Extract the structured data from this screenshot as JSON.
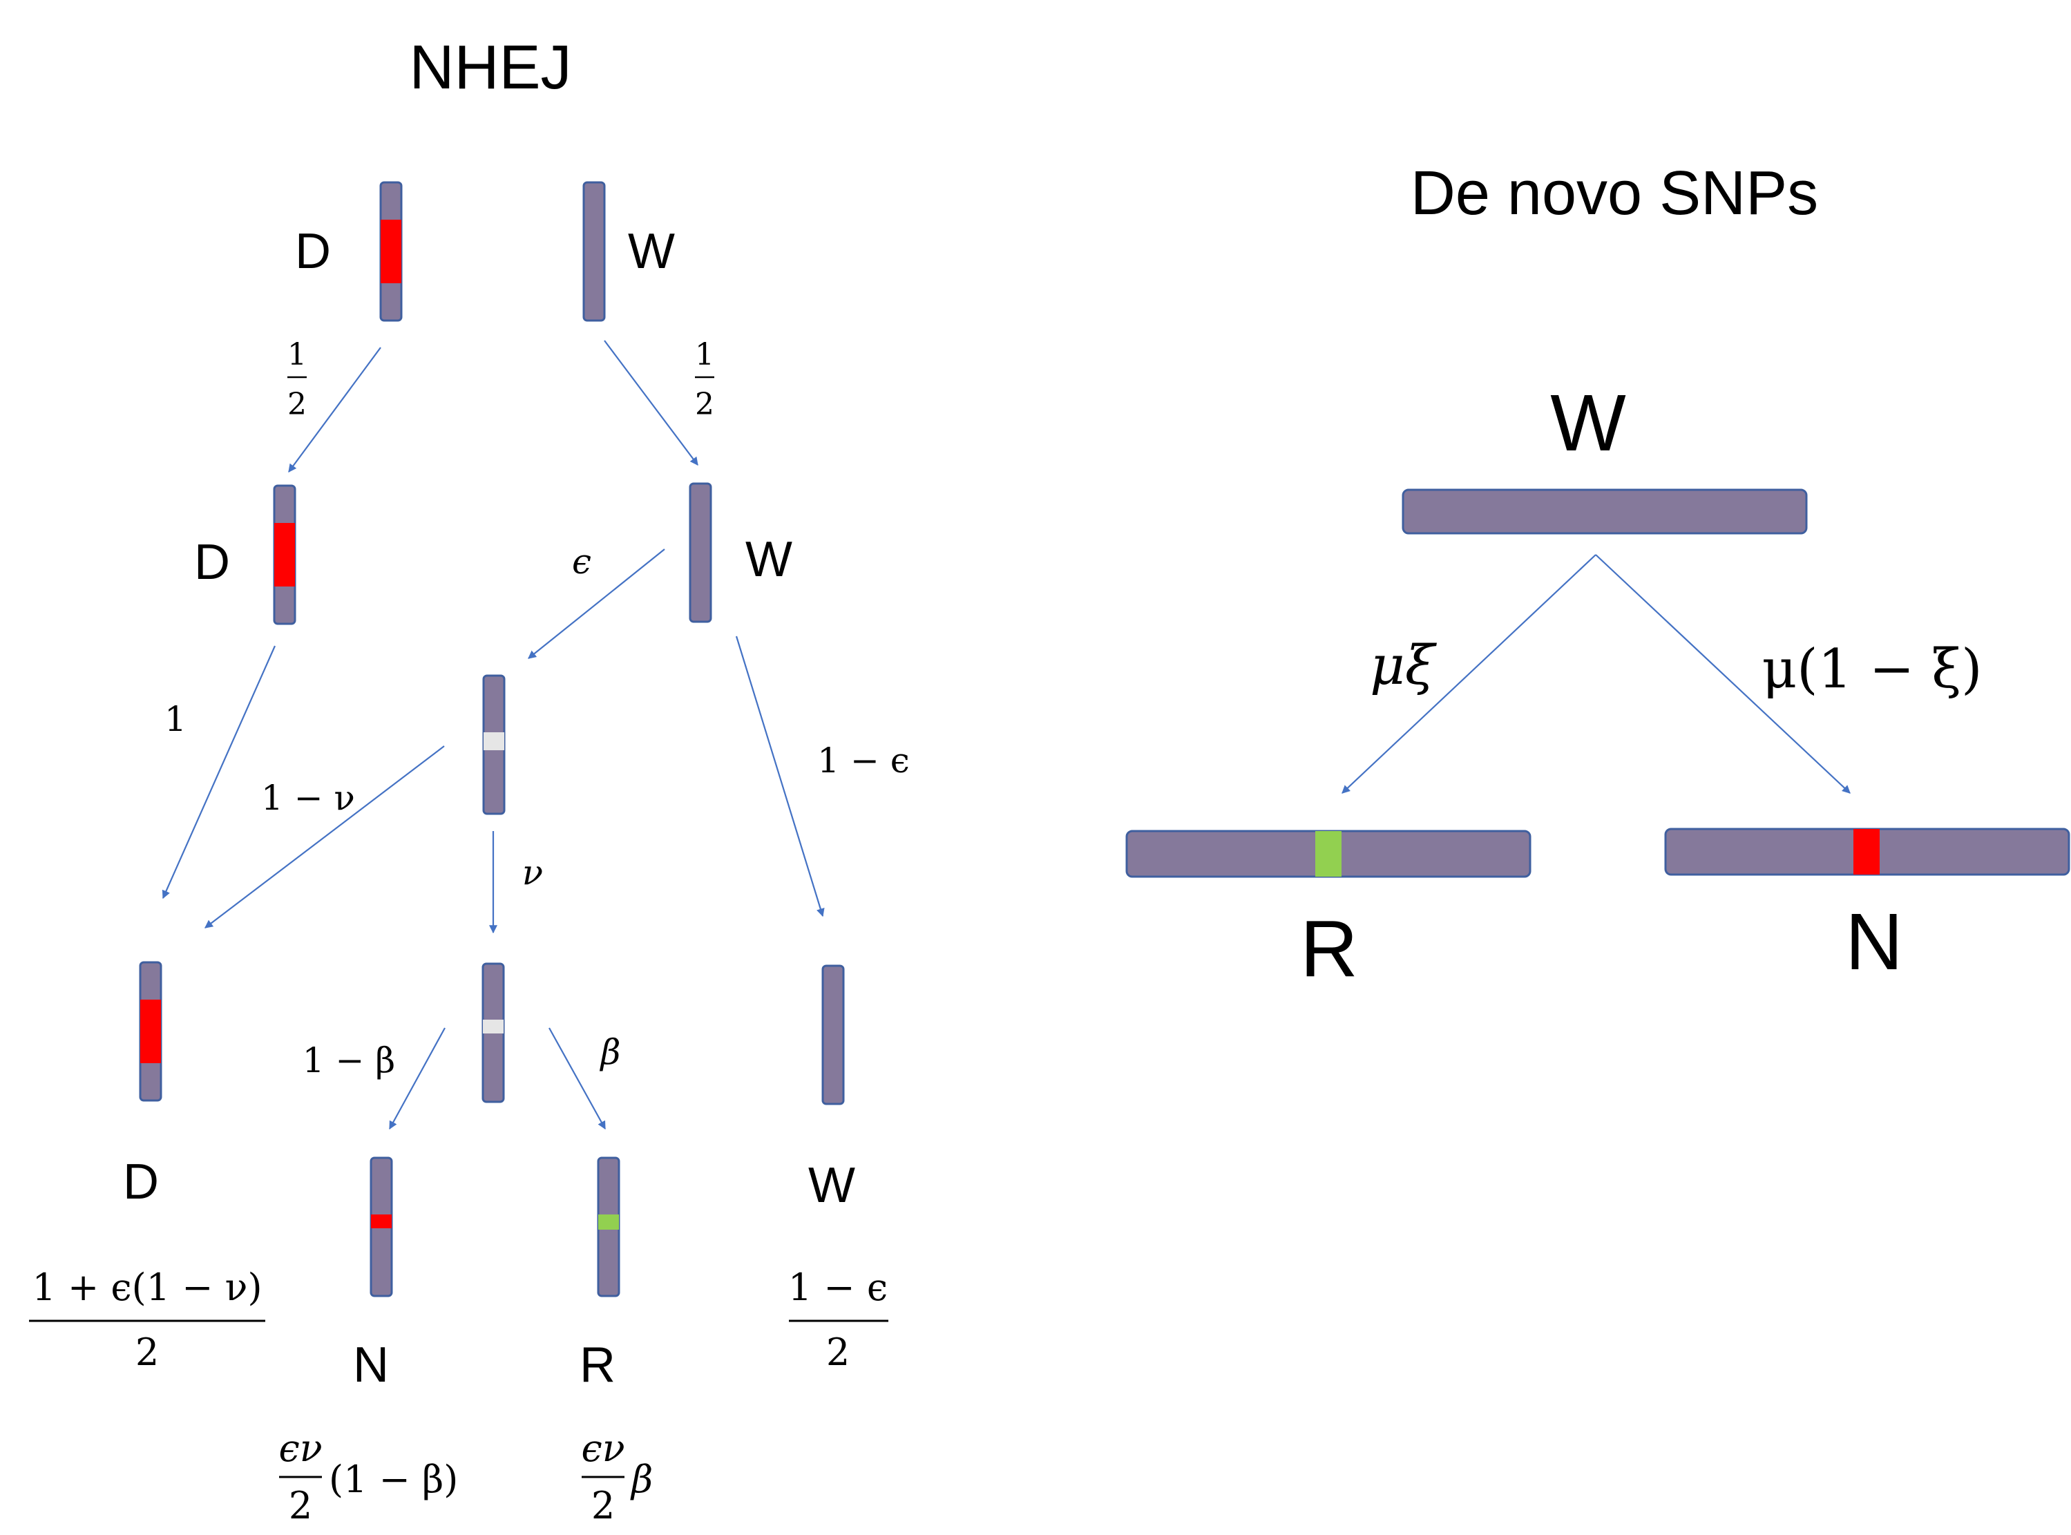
{
  "colors": {
    "chromosome": "#85799b",
    "chromosome_outline": "#3f5f9f",
    "arrow": "#4472c4",
    "mutation_red": "#ff0000",
    "mutation_green": "#92d050",
    "cut_gap": "#e6e6e6"
  },
  "nhej": {
    "title": "NHEJ",
    "top_d_label": "D",
    "top_w_label": "W",
    "prob_half_left_num": "1",
    "prob_half_left_den": "2",
    "prob_half_right_num": "1",
    "prob_half_right_den": "2",
    "mid_d_label": "D",
    "mid_w_label": "W",
    "prob_epsilon": "ϵ",
    "prob_one": "1",
    "prob_one_minus_nu": "1 − ν",
    "prob_nu": "ν",
    "prob_one_minus_epsilon": "1 − ϵ",
    "prob_one_minus_beta": "1 − β",
    "prob_beta": "β",
    "final_d_label": "D",
    "final_n_label": "N",
    "final_r_label": "R",
    "final_w_label": "W",
    "formula_d_num": "1 + ϵ(1 − ν)",
    "formula_d_den": "2",
    "formula_n_num": "ϵν",
    "formula_n_den": "2",
    "formula_n_suffix": "(1 − β)",
    "formula_r_num": "ϵν",
    "formula_r_den": "2",
    "formula_r_suffix": "β",
    "formula_w_num": "1 − ϵ",
    "formula_w_den": "2"
  },
  "denovo": {
    "title": "De novo SNPs",
    "top_label": "W",
    "prob_left": "μξ",
    "prob_right": "μ(1 − ξ)",
    "left_label": "R",
    "right_label": "N"
  }
}
